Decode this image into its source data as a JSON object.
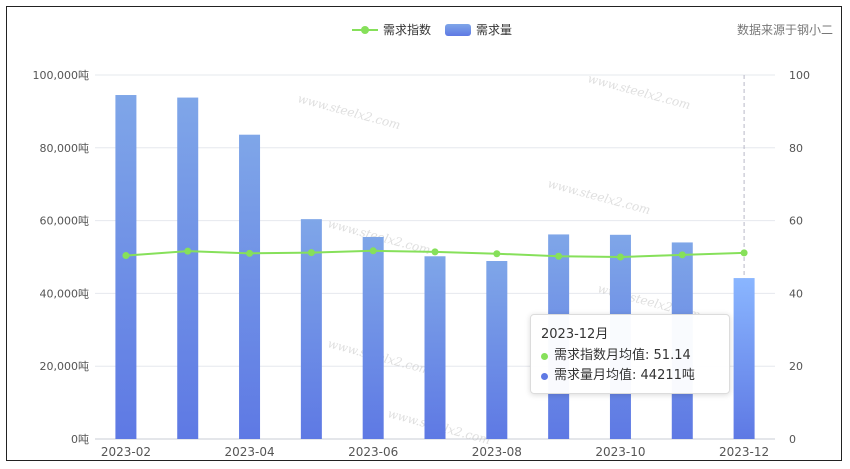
{
  "legend": {
    "line_label": "需求指数",
    "bar_label": "需求量"
  },
  "source_note": "数据来源于钢小二",
  "watermark_text": "www.steelx2.com",
  "colors": {
    "line": "#86e05a",
    "bar_top": "#7fa6e8",
    "bar_bottom": "#5e79e4",
    "bar_highlight_top": "#8ab6ff",
    "grid": "#e6e8ee",
    "axis_text": "#555555"
  },
  "tooltip": {
    "title": "2023-12月",
    "rows": [
      {
        "label": "需求指数月均值:",
        "value": "51.14",
        "color": "#86e05a"
      },
      {
        "label": "需求量月均值:",
        "value": "44211吨",
        "color": "#5e79e4"
      }
    ]
  },
  "chart_data": {
    "type": "bar",
    "categories": [
      "2023-02",
      "2023-03",
      "2023-04",
      "2023-05",
      "2023-06",
      "2023-07",
      "2023-08",
      "2023-09",
      "2023-10",
      "2023-11",
      "2023-12"
    ],
    "x_tick_labels": [
      "2023-02",
      "2023-04",
      "2023-06",
      "2023-08",
      "2023-10",
      "2023-12"
    ],
    "series": [
      {
        "name": "需求量",
        "type": "bar",
        "axis": "left",
        "values": [
          94500,
          93800,
          83600,
          60400,
          55500,
          50200,
          48900,
          56200,
          56100,
          54000,
          44211
        ]
      },
      {
        "name": "需求指数",
        "type": "line",
        "axis": "right",
        "values": [
          50.4,
          51.6,
          51.0,
          51.2,
          51.7,
          51.4,
          50.9,
          50.2,
          50.0,
          50.6,
          51.14
        ]
      }
    ],
    "y_left": {
      "ylim": [
        0,
        100000
      ],
      "ticks": [
        "0吨",
        "20,000吨",
        "40,000吨",
        "60,000吨",
        "80,000吨",
        "100,000吨"
      ]
    },
    "y_right": {
      "ylim": [
        0,
        100
      ],
      "ticks": [
        "0",
        "20",
        "40",
        "60",
        "80",
        "100"
      ]
    },
    "grid": true,
    "legend_position": "top-center",
    "highlight_category": "2023-12"
  }
}
